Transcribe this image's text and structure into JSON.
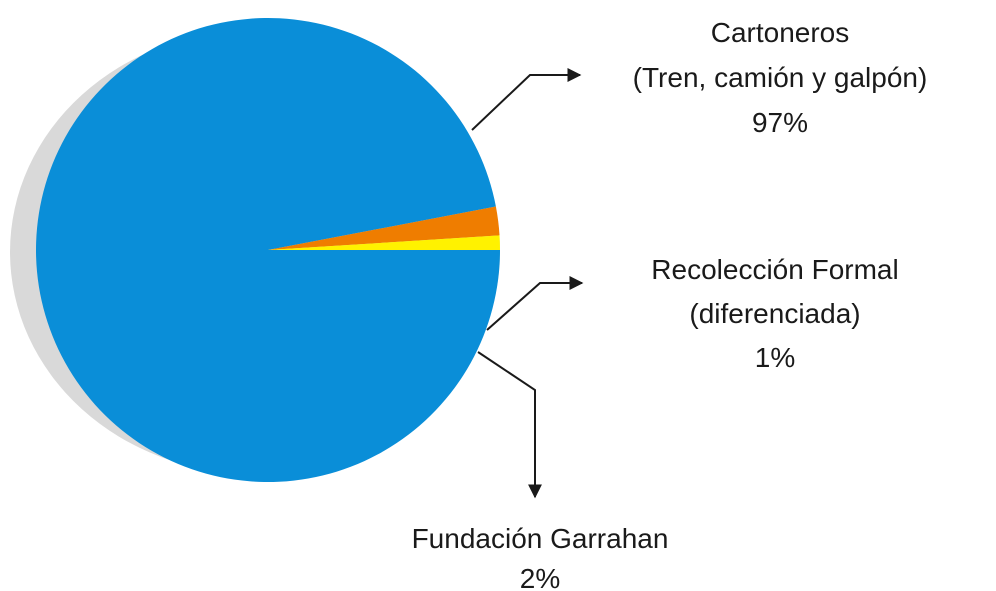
{
  "chart_data": {
    "type": "pie",
    "slices": [
      {
        "label": "Cartoneros",
        "sublabel": "(Tren, camión y galpón)",
        "value": 97,
        "value_text": "97%",
        "color": "#0a8ed8"
      },
      {
        "label": "Recolección Formal",
        "sublabel": "(diferenciada)",
        "value": 1,
        "value_text": "1%",
        "color": "#fff200"
      },
      {
        "label": "Fundación Garrahan",
        "sublabel": "",
        "value": 2,
        "value_text": "2%",
        "color": "#ef7d00"
      }
    ],
    "shadow_color": "#d9d9d9",
    "leader_color": "#1a1a1a"
  }
}
